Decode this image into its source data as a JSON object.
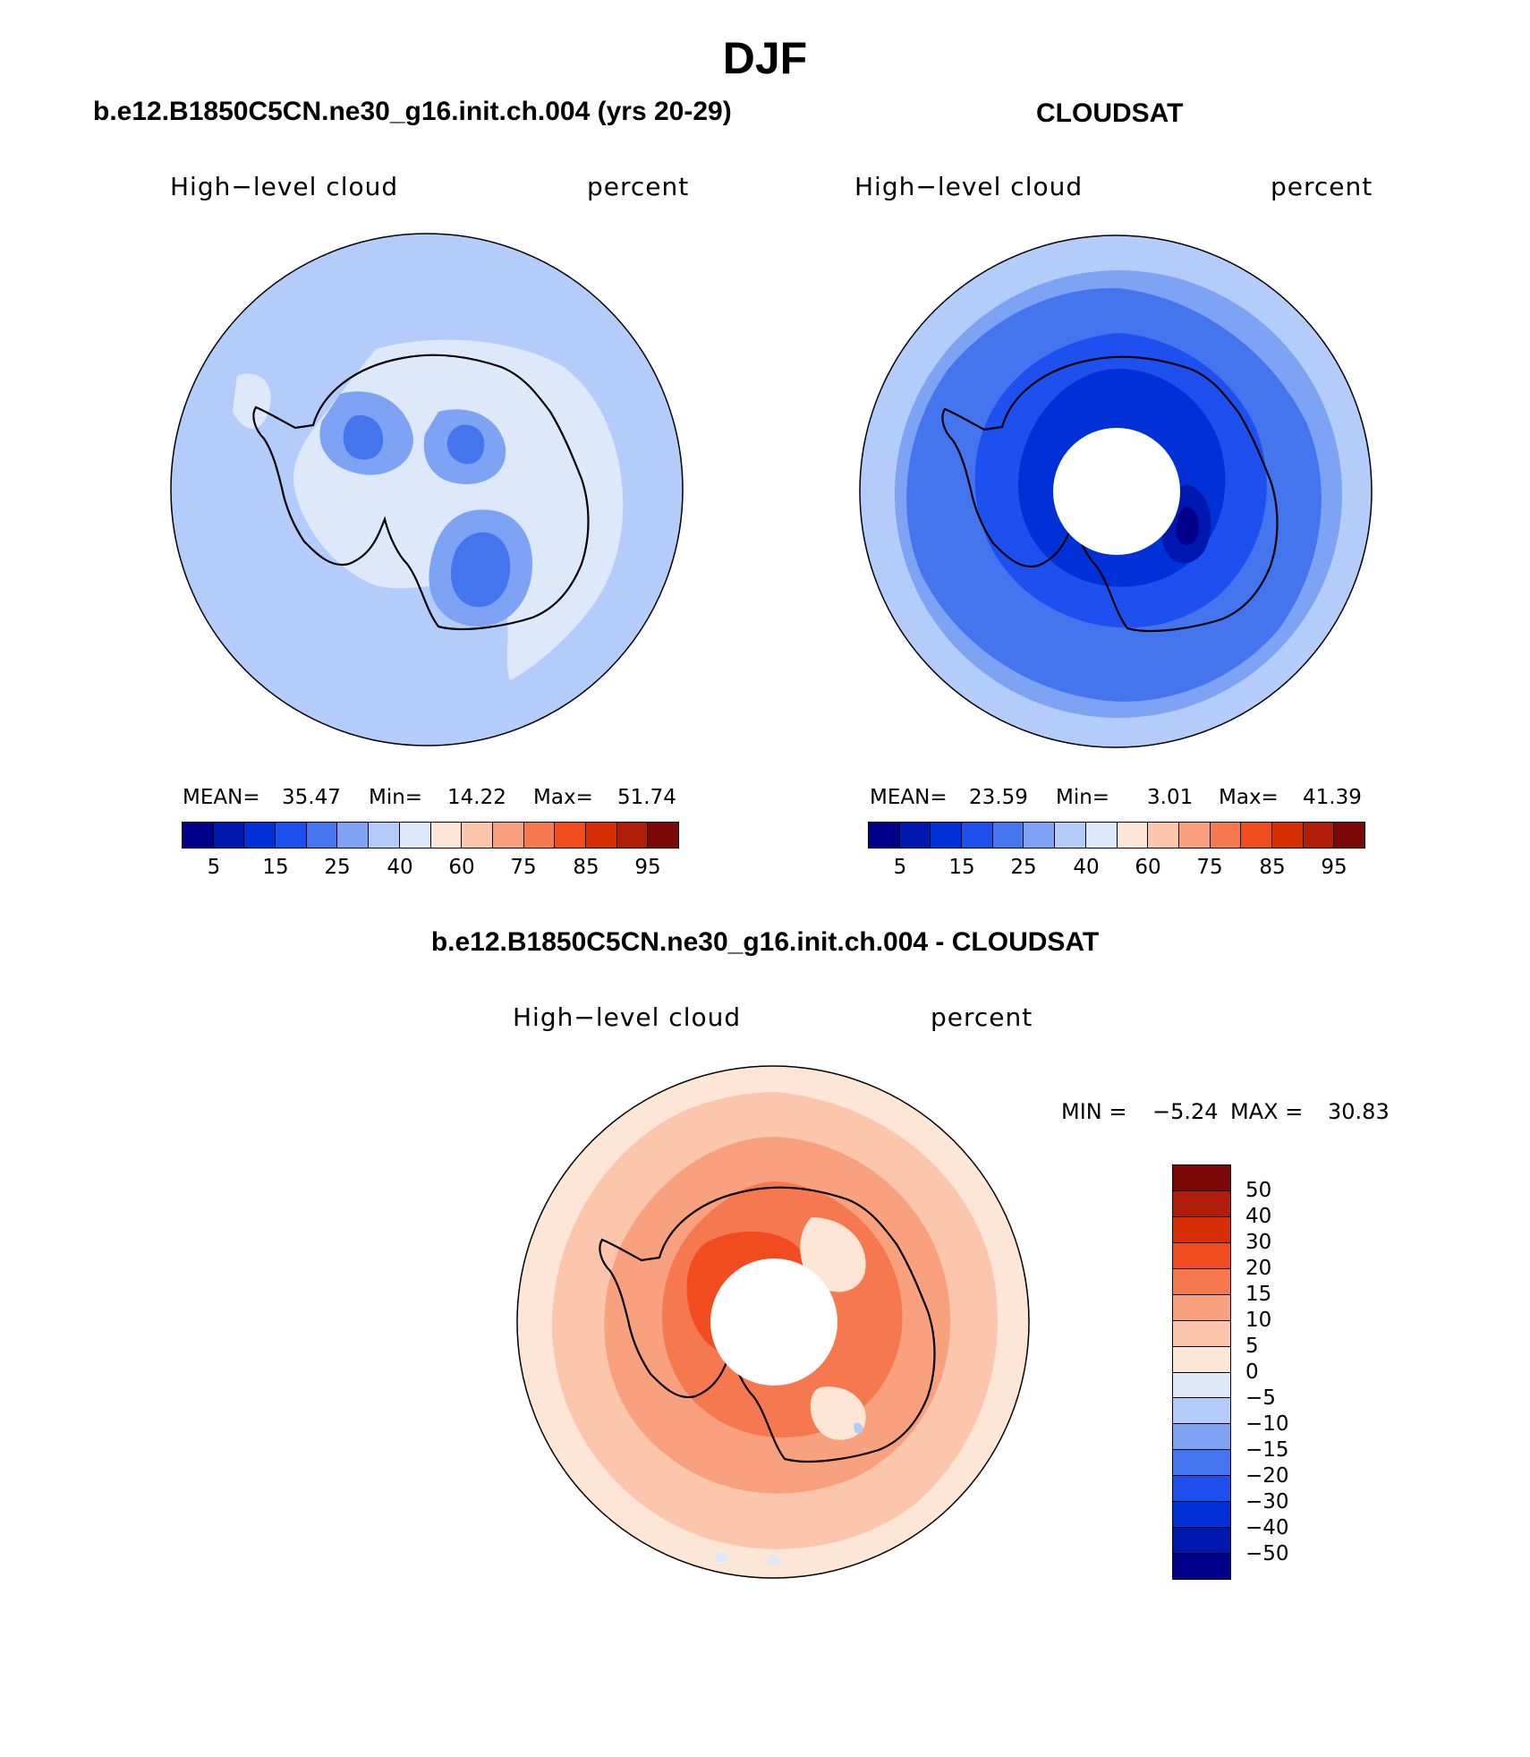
{
  "page": {
    "title": "DJF"
  },
  "panels": {
    "model": {
      "title": "b.e12.B1850C5CN.ne30_g16.init.ch.004 (yrs 20-29)",
      "left_label": "High−level cloud",
      "right_label": "percent",
      "mean_label": "MEAN=",
      "mean": "35.47",
      "min_label": "Min=",
      "min": "14.22",
      "max_label": "Max=",
      "max": "51.74"
    },
    "obs": {
      "title": "CLOUDSAT",
      "left_label": "High−level cloud",
      "right_label": "percent",
      "mean_label": "MEAN=",
      "mean": "23.59",
      "min_label": "Min=",
      "min": "3.01",
      "max_label": "Max=",
      "max": "41.39"
    },
    "diff": {
      "title": "b.e12.B1850C5CN.ne30_g16.init.ch.004 - CLOUDSAT",
      "left_label": "High−level cloud",
      "right_label": "percent",
      "min_label": "MIN =",
      "min": "−5.24",
      "max_label": "MAX =",
      "max": "30.83"
    }
  },
  "colorbars": {
    "abs_colors": [
      "#00008a",
      "#0017b0",
      "#0030d8",
      "#1e50f0",
      "#4474ee",
      "#7ea2f4",
      "#b4ccfa",
      "#dde9fb",
      "#fde6d6",
      "#fcc6ac",
      "#f9a07e",
      "#f5784f",
      "#f04c1f",
      "#d82e05",
      "#b01d08",
      "#7c0707"
    ],
    "abs_ticks": [
      "5",
      "15",
      "25",
      "40",
      "60",
      "75",
      "85",
      "95"
    ],
    "diff_colors_top_to_bottom": [
      "#7c0707",
      "#b01d08",
      "#d82e05",
      "#f04c1f",
      "#f5784f",
      "#f9a07e",
      "#fcc6ac",
      "#fde6d6",
      "#dde9fb",
      "#b4ccfa",
      "#7ea2f4",
      "#4474ee",
      "#1e50f0",
      "#0030d8",
      "#0017b0",
      "#00008a"
    ],
    "diff_ticks": [
      "50",
      "40",
      "30",
      "20",
      "15",
      "10",
      "5",
      "0",
      "−5",
      "−10",
      "−15",
      "−20",
      "−30",
      "−40",
      "−50"
    ]
  },
  "chart_data": [
    {
      "type": "heatmap",
      "projection": "south polar stereographic",
      "title": "b.e12.B1850C5CN.ne30_g16.init.ch.004 (yrs 20-29)",
      "variable": "High-level cloud",
      "units": "percent",
      "stats": {
        "mean": 35.47,
        "min": 14.22,
        "max": 51.74
      },
      "contour_levels": [
        5,
        10,
        15,
        20,
        25,
        30,
        40,
        50,
        60,
        65,
        75,
        80,
        85,
        90,
        95
      ],
      "dominant_range": [
        30,
        40
      ]
    },
    {
      "type": "heatmap",
      "projection": "south polar stereographic",
      "title": "CLOUDSAT",
      "variable": "High-level cloud",
      "units": "percent",
      "stats": {
        "mean": 23.59,
        "min": 3.01,
        "max": 41.39
      },
      "contour_levels": [
        5,
        10,
        15,
        20,
        25,
        30,
        40,
        50,
        60,
        65,
        75,
        80,
        85,
        90,
        95
      ],
      "dominant_range": [
        15,
        30
      ],
      "missing": "polar cap (no data)"
    },
    {
      "type": "heatmap",
      "projection": "south polar stereographic",
      "title": "b.e12.B1850C5CN.ne30_g16.init.ch.004 - CLOUDSAT",
      "variable": "High-level cloud",
      "units": "percent",
      "stats": {
        "min": -5.24,
        "max": 30.83
      },
      "contour_levels": [
        -50,
        -40,
        -30,
        -20,
        -15,
        -10,
        -5,
        0,
        5,
        10,
        15,
        20,
        30,
        40,
        50
      ],
      "dominant_range": [
        5,
        20
      ],
      "missing": "polar cap (no data)"
    }
  ]
}
